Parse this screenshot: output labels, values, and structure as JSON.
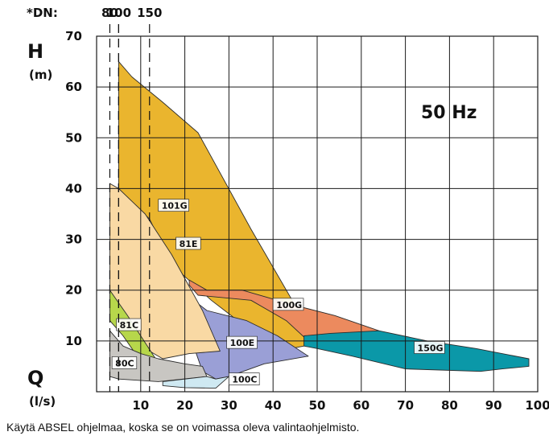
{
  "chart_data": {
    "type": "area",
    "title": "",
    "frequency_label": "50 Hz",
    "xlabel": "Q",
    "xunit": "(l/s)",
    "ylabel": "H",
    "yunit": "(m)",
    "xlim": [
      0,
      100
    ],
    "ylim": [
      0,
      70
    ],
    "x_ticks": [
      10,
      20,
      30,
      40,
      50,
      60,
      70,
      80,
      90,
      100
    ],
    "y_ticks": [
      10,
      20,
      30,
      40,
      50,
      60,
      70
    ],
    "grid": true,
    "dn": {
      "prefix": "*DN:",
      "lines": [
        {
          "label": "80",
          "x": 3
        },
        {
          "label": "",
          "x": 5
        },
        {
          "label": "100",
          "x": 5
        },
        {
          "label": "150",
          "x": 12
        }
      ]
    },
    "series": [
      {
        "name": "101G",
        "color": "#eab52e",
        "label_at": [
          14,
          36
        ],
        "points": [
          [
            5,
            65
          ],
          [
            8,
            62
          ],
          [
            15,
            57
          ],
          [
            23,
            51
          ],
          [
            35,
            32
          ],
          [
            47,
            14
          ],
          [
            48,
            10
          ],
          [
            47,
            9
          ],
          [
            41,
            8
          ],
          [
            26,
            18
          ],
          [
            17,
            25
          ],
          [
            12,
            34
          ],
          [
            5,
            40
          ]
        ]
      },
      {
        "name": "100G",
        "color": "#ec8a5e",
        "label_at": [
          40,
          16.5
        ],
        "points": [
          [
            21,
            22
          ],
          [
            25,
            20
          ],
          [
            33,
            20
          ],
          [
            45,
            17
          ],
          [
            54,
            15
          ],
          [
            64,
            12
          ],
          [
            52,
            9
          ],
          [
            48,
            10
          ],
          [
            43,
            14
          ],
          [
            35,
            18
          ],
          [
            23,
            19
          ],
          [
            21,
            21
          ]
        ]
      },
      {
        "name": "150G",
        "color": "#0b98a8",
        "label_at": [
          72,
          8
        ],
        "points": [
          [
            47,
            11
          ],
          [
            53,
            11.5
          ],
          [
            64,
            12
          ],
          [
            75,
            10
          ],
          [
            86,
            8.5
          ],
          [
            98,
            6.5
          ],
          [
            98,
            5
          ],
          [
            92,
            4.5
          ],
          [
            87,
            4
          ],
          [
            70,
            4.5
          ],
          [
            58,
            7
          ],
          [
            50,
            8.5
          ],
          [
            47,
            9
          ]
        ]
      },
      {
        "name": "100E",
        "color": "#9a9fd6",
        "label_at": [
          29.5,
          9
        ],
        "points": [
          [
            22,
            18
          ],
          [
            25,
            16
          ],
          [
            34,
            14
          ],
          [
            41,
            11
          ],
          [
            48,
            7
          ],
          [
            38,
            5.5
          ],
          [
            30,
            3
          ],
          [
            27,
            2.5
          ],
          [
            24,
            4
          ],
          [
            22,
            9
          ]
        ]
      },
      {
        "name": "81E",
        "color": "#f9d9a4",
        "label_at": [
          18,
          28.5
        ],
        "points": [
          [
            3,
            41
          ],
          [
            5,
            40
          ],
          [
            11,
            35
          ],
          [
            17,
            27
          ],
          [
            24,
            16
          ],
          [
            28,
            8
          ],
          [
            21,
            7.5
          ],
          [
            15,
            6.5
          ],
          [
            12,
            8
          ],
          [
            6,
            14
          ],
          [
            3,
            16
          ]
        ]
      },
      {
        "name": "81C",
        "color": "#b7d74b",
        "label_at": [
          4.5,
          12.5
        ],
        "points": [
          [
            3,
            20
          ],
          [
            7,
            15
          ],
          [
            13,
            7
          ],
          [
            16,
            3
          ],
          [
            14.5,
            2.5
          ],
          [
            10,
            6
          ],
          [
            6,
            11
          ],
          [
            3,
            14
          ]
        ]
      },
      {
        "name": "80C",
        "color": "#c8c6c2",
        "label_at": [
          3.5,
          5
        ],
        "points": [
          [
            3,
            12
          ],
          [
            6,
            9
          ],
          [
            10,
            7.5
          ],
          [
            14,
            6.5
          ],
          [
            20,
            5.5
          ],
          [
            24,
            5
          ],
          [
            25,
            3
          ],
          [
            14,
            2
          ],
          [
            5,
            2.5
          ],
          [
            3,
            3
          ]
        ]
      },
      {
        "name": "100C",
        "color": "#cfe9f2",
        "label_at": [
          30,
          1.8
        ],
        "points": [
          [
            15,
            2
          ],
          [
            25,
            3
          ],
          [
            27,
            2.5
          ],
          [
            30,
            3
          ],
          [
            27,
            0.7
          ],
          [
            20,
            0.8
          ],
          [
            15,
            1.2
          ]
        ]
      }
    ]
  },
  "footnote": "Käytä ABSEL ohjelmaa, koska se on voimassa oleva valintaohjelmisto."
}
